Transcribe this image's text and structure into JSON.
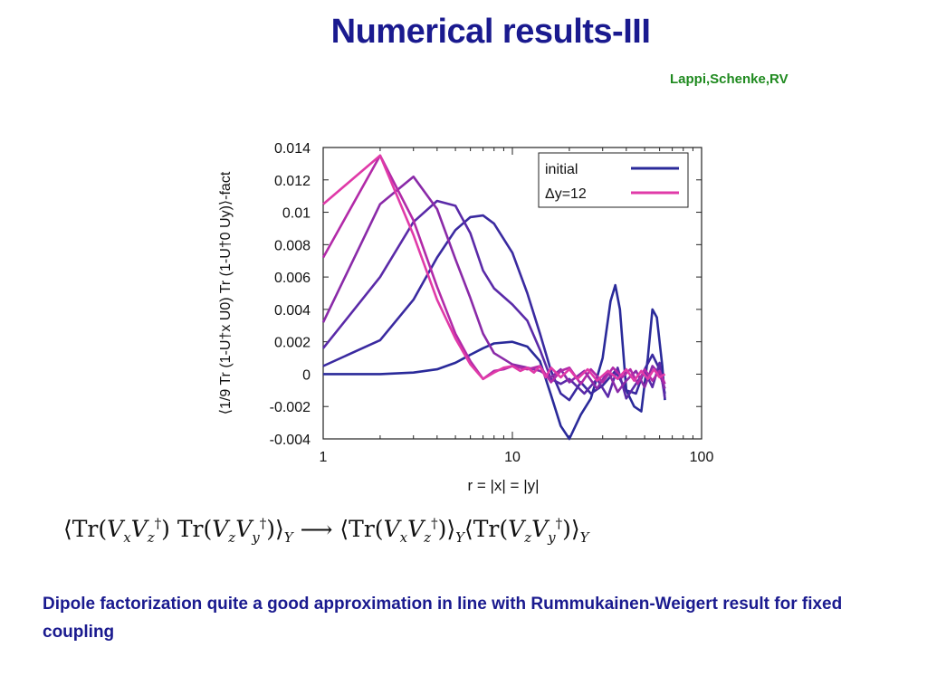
{
  "slide": {
    "title": "Numerical results-III",
    "authors": "Lappi,Schenke,RV",
    "caption": "Dipole factorization quite a good approximation in line with Rummukainen-Weigert result for fixed coupling"
  },
  "formula": {
    "lhs": "⟨Tr(V_x V_z†) Tr(V_z V_y†)⟩_Y",
    "arrow": "⟶",
    "rhs": "⟨Tr(V_x V_z†)⟩_Y ⟨Tr(V_z V_y†)⟩_Y"
  },
  "chart_data": {
    "type": "line",
    "xlabel": "r = |x| = |y|",
    "ylabel": "⟨1/9 Tr (1-U†x U0) Tr (1-U†0 Uy)⟩-fact",
    "xscale": "log",
    "xlim": [
      1,
      100
    ],
    "ylim": [
      -0.004,
      0.014
    ],
    "x_ticks": [
      "1",
      "10",
      "100"
    ],
    "y_ticks": [
      "0.014",
      "0.012",
      "0.01",
      "0.008",
      "0.006",
      "0.004",
      "0.002",
      "0",
      "-0.002",
      "-0.004"
    ],
    "legend_position": "top-right",
    "legend": [
      {
        "label": "initial",
        "color": "#2a2a9a"
      },
      {
        "label": "Δy=12",
        "color": "#e03aa8"
      }
    ],
    "series": [
      {
        "color": "#2a2a9a",
        "points": [
          [
            1,
            0.0
          ],
          [
            2,
            0.0
          ],
          [
            3,
            0.0001
          ],
          [
            4,
            0.0003
          ],
          [
            5,
            0.0007
          ],
          [
            6,
            0.0012
          ],
          [
            7,
            0.0016
          ],
          [
            8,
            0.0019
          ],
          [
            10,
            0.002
          ],
          [
            12,
            0.0017
          ],
          [
            14,
            0.0008
          ],
          [
            16,
            -0.0013
          ],
          [
            18,
            -0.0032
          ],
          [
            20,
            -0.004
          ],
          [
            23,
            -0.0025
          ],
          [
            26,
            -0.0015
          ],
          [
            30,
            0.001
          ],
          [
            33,
            0.0045
          ],
          [
            35,
            0.0055
          ],
          [
            37,
            0.004
          ],
          [
            40,
            -0.001
          ],
          [
            44,
            -0.002
          ],
          [
            48,
            -0.0023
          ],
          [
            52,
            0.001
          ],
          [
            55,
            0.004
          ],
          [
            58,
            0.0035
          ],
          [
            62,
            0.0005
          ],
          [
            64,
            -0.0016
          ]
        ]
      },
      {
        "color": "#3a2aa0",
        "points": [
          [
            1,
            0.0005
          ],
          [
            2,
            0.0021
          ],
          [
            3,
            0.0046
          ],
          [
            4,
            0.0072
          ],
          [
            5,
            0.0089
          ],
          [
            6,
            0.0097
          ],
          [
            7,
            0.0098
          ],
          [
            8,
            0.0093
          ],
          [
            10,
            0.0075
          ],
          [
            12,
            0.005
          ],
          [
            14,
            0.0025
          ],
          [
            16,
            0.0002
          ],
          [
            18,
            -0.0012
          ],
          [
            20,
            -0.0016
          ],
          [
            23,
            -0.0005
          ],
          [
            26,
            -0.0012
          ],
          [
            30,
            -0.0007
          ],
          [
            35,
            0.0002
          ],
          [
            40,
            -0.001
          ],
          [
            45,
            -0.0012
          ],
          [
            50,
            0.0003
          ],
          [
            55,
            0.0012
          ],
          [
            60,
            0.0003
          ],
          [
            64,
            -0.0012
          ]
        ]
      },
      {
        "color": "#5a2aa8",
        "points": [
          [
            1,
            0.0016
          ],
          [
            2,
            0.006
          ],
          [
            3,
            0.0094
          ],
          [
            4,
            0.0107
          ],
          [
            5,
            0.0104
          ],
          [
            6,
            0.0087
          ],
          [
            7,
            0.0064
          ],
          [
            8,
            0.0053
          ],
          [
            10,
            0.0043
          ],
          [
            12,
            0.0033
          ],
          [
            14,
            0.0015
          ],
          [
            16,
            -0.0003
          ],
          [
            18,
            -0.0006
          ],
          [
            20,
            -0.0003
          ],
          [
            24,
            -0.0012
          ],
          [
            28,
            -0.0003
          ],
          [
            32,
            -0.0014
          ],
          [
            36,
            0.0004
          ],
          [
            40,
            -0.0015
          ],
          [
            45,
            -0.0006
          ],
          [
            50,
            0.0002
          ],
          [
            55,
            -0.0008
          ],
          [
            60,
            0.0007
          ],
          [
            64,
            -0.0015
          ]
        ]
      },
      {
        "color": "#8a2aa8",
        "points": [
          [
            1,
            0.0032
          ],
          [
            2,
            0.0105
          ],
          [
            3,
            0.0122
          ],
          [
            4,
            0.0102
          ],
          [
            5,
            0.0071
          ],
          [
            6,
            0.0047
          ],
          [
            7,
            0.0025
          ],
          [
            8,
            0.0013
          ],
          [
            10,
            0.0006
          ],
          [
            12,
            0.0004
          ],
          [
            14,
            0.0002
          ],
          [
            16,
            -0.0002
          ],
          [
            18,
            0.0003
          ],
          [
            20,
            -0.0005
          ],
          [
            24,
            0.0002
          ],
          [
            28,
            -0.0009
          ],
          [
            32,
            0.0002
          ],
          [
            36,
            -0.0011
          ],
          [
            40,
            -0.0004
          ],
          [
            45,
            0.0002
          ],
          [
            50,
            -0.0008
          ],
          [
            55,
            0.0005
          ],
          [
            60,
            0.0
          ],
          [
            64,
            -0.0009
          ]
        ]
      },
      {
        "color": "#b22aa8",
        "points": [
          [
            1,
            0.0072
          ],
          [
            2,
            0.0135
          ],
          [
            3,
            0.0095
          ],
          [
            4,
            0.0054
          ],
          [
            5,
            0.0025
          ],
          [
            6,
            0.0008
          ],
          [
            7,
            -0.0003
          ],
          [
            8,
            0.0002
          ],
          [
            9,
            0.0003
          ],
          [
            10,
            0.0005
          ],
          [
            12,
            0.0003
          ],
          [
            14,
            0.0005
          ],
          [
            16,
            -0.0005
          ],
          [
            18,
            0.0002
          ],
          [
            20,
            0.0004
          ],
          [
            23,
            -0.0006
          ],
          [
            26,
            0.0003
          ],
          [
            30,
            -0.0005
          ],
          [
            34,
            0.0004
          ],
          [
            38,
            -0.0002
          ],
          [
            42,
            0.0003
          ],
          [
            46,
            -0.0006
          ],
          [
            50,
            0.0003
          ],
          [
            55,
            -0.0004
          ],
          [
            60,
            0.0002
          ],
          [
            64,
            -0.0006
          ]
        ]
      },
      {
        "color": "#e03aa8",
        "points": [
          [
            1,
            0.0105
          ],
          [
            2,
            0.0135
          ],
          [
            3,
            0.0086
          ],
          [
            4,
            0.0046
          ],
          [
            5,
            0.0022
          ],
          [
            6,
            0.0006
          ],
          [
            7,
            -0.0003
          ],
          [
            8,
            0.0001
          ],
          [
            9,
            0.0004
          ],
          [
            10,
            0.0005
          ],
          [
            11,
            0.0002
          ],
          [
            12,
            0.0004
          ],
          [
            13,
            0.0001
          ],
          [
            14,
            0.0005
          ],
          [
            15,
            -0.0002
          ],
          [
            16,
            0.0004
          ],
          [
            18,
            -0.0002
          ],
          [
            20,
            0.0003
          ],
          [
            22,
            -0.0003
          ],
          [
            25,
            0.0003
          ],
          [
            28,
            -0.0004
          ],
          [
            32,
            0.0002
          ],
          [
            36,
            -0.0003
          ],
          [
            40,
            0.0003
          ],
          [
            44,
            -0.0004
          ],
          [
            48,
            0.0002
          ],
          [
            52,
            -0.0003
          ],
          [
            56,
            0.0003
          ],
          [
            60,
            -0.0002
          ],
          [
            64,
            0.0
          ]
        ]
      }
    ]
  }
}
